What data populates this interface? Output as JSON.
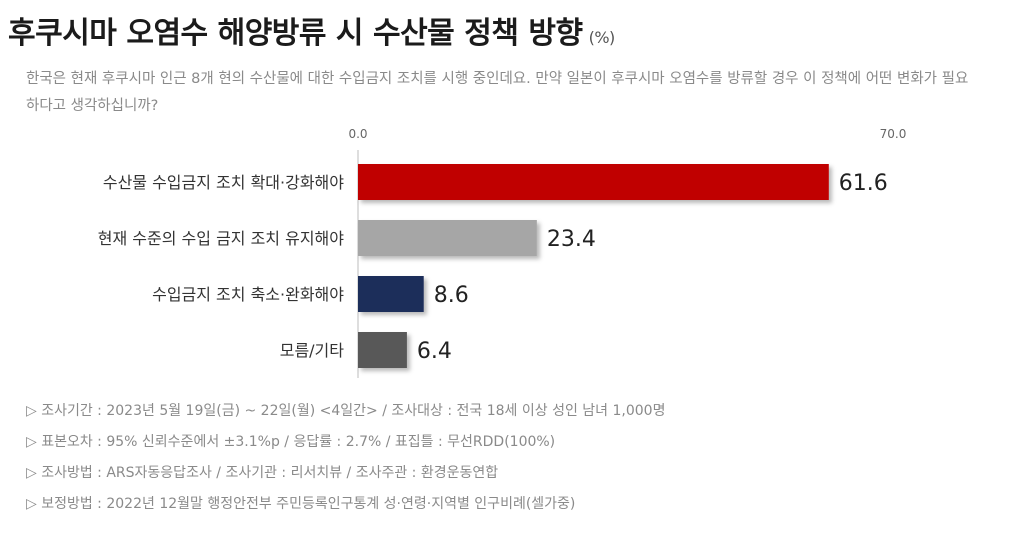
{
  "title": "후쿠시마 오염수 해양방류 시 수산물 정책 방향",
  "unit": "(%)",
  "question": "한국은 현재 후쿠시마 인근 8개 현의 수산물에 대한 수입금지 조치를 시행 중인데요. 만약 일본이 후쿠시마 오염수를 방류할 경우 이 정책에 어떤 변화가 필요하다고 생각하십니까?",
  "chart_data": {
    "type": "bar",
    "orientation": "horizontal",
    "categories": [
      "수산물 수입금지 조치 확대·강화해야",
      "현재 수준의 수입 금지 조치 유지해야",
      "수입금지 조치 축소·완화해야",
      "모름/기타"
    ],
    "values": [
      61.6,
      23.4,
      8.6,
      6.4
    ],
    "value_labels": [
      "61.6",
      "23.4",
      "8.6",
      "6.4"
    ],
    "colors": [
      "#c00000",
      "#a6a6a6",
      "#1f2d5a",
      "#595959"
    ],
    "axis_ticks": [
      "0.0",
      "70.0"
    ],
    "xlim": [
      0,
      70
    ]
  },
  "notes": [
    "▷ 조사기간 : 2023년 5월 19일(금) ~ 22일(월) <4일간> / 조사대상 : 전국 18세 이상 성인 남녀 1,000명",
    "▷ 표본오차 : 95% 신뢰수준에서 ±3.1%p / 응답률 : 2.7% / 표집틀 : 무선RDD(100%)",
    "▷ 조사방법 : ARS자동응답조사 / 조사기관 : 리서치뷰 / 조사주관 : 환경운동연합",
    "▷ 보정방법 : 2022년 12월말 행정안전부 주민등록인구통계 성·연령·지역별 인구비례(셀가중)"
  ]
}
